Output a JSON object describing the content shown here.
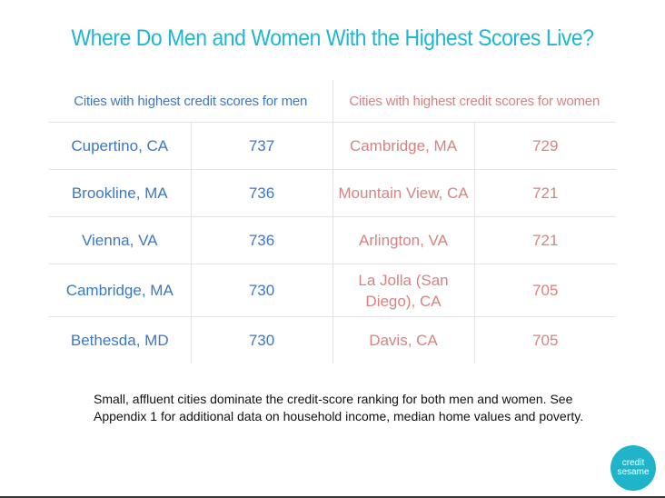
{
  "title": "Where Do Men and Women With the Highest Scores Live?",
  "chart_data": {
    "type": "table",
    "columns": [
      "Cities with highest credit scores for men",
      "",
      "Cities with highest credit scores for women",
      ""
    ],
    "rows": [
      {
        "men_city": "Cupertino, CA",
        "men_score": "737",
        "women_city": "Cambridge, MA",
        "women_score": "729"
      },
      {
        "men_city": "Brookline, MA",
        "men_score": "736",
        "women_city": "Mountain View, CA",
        "women_score": "721"
      },
      {
        "men_city": "Vienna, VA",
        "men_score": "736",
        "women_city": "Arlington, VA",
        "women_score": "721"
      },
      {
        "men_city": "Cambridge, MA",
        "men_score": "730",
        "women_city": "La Jolla (San Diego), CA",
        "women_score": "705"
      },
      {
        "men_city": "Bethesda, MD",
        "men_score": "730",
        "women_city": "Davis, CA",
        "women_score": "705"
      }
    ]
  },
  "caption": "Small, affluent cities dominate the credit-score ranking for both men and women. See Appendix 1 for additional data on household income, median home values and poverty.",
  "logo": {
    "line1": "credit",
    "line2": "sesame"
  },
  "colors": {
    "title": "#1fb8d0",
    "men": "#3b78c4",
    "women": "#d68382",
    "logo": "#1fb4c9"
  }
}
